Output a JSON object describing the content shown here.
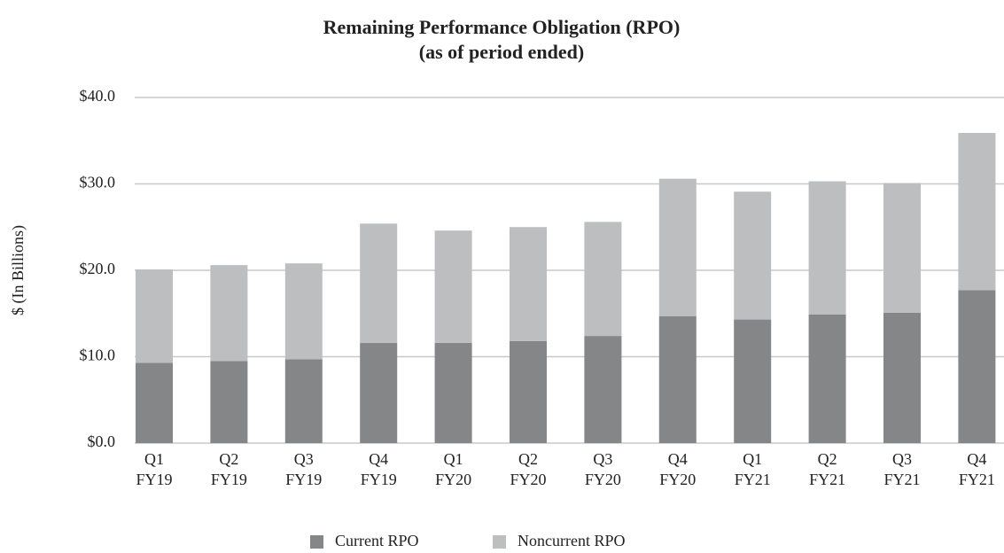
{
  "chart_data": {
    "type": "stacked_bar",
    "title": "Remaining Performance Obligation (RPO)",
    "subtitle": "(as of period ended)",
    "y_label": "$ (In Billions)",
    "categories": [
      [
        "Q1",
        "FY19"
      ],
      [
        "Q2",
        "FY19"
      ],
      [
        "Q3",
        "FY19"
      ],
      [
        "Q4",
        "FY19"
      ],
      [
        "Q1",
        "FY20"
      ],
      [
        "Q2",
        "FY20"
      ],
      [
        "Q3",
        "FY20"
      ],
      [
        "Q4",
        "FY20"
      ],
      [
        "Q1",
        "FY21"
      ],
      [
        "Q2",
        "FY21"
      ],
      [
        "Q3",
        "FY21"
      ],
      [
        "Q4",
        "FY21"
      ]
    ],
    "series": [
      {
        "name": "Current RPO",
        "color": "#858688",
        "values": [
          9.3,
          9.5,
          9.7,
          11.6,
          11.6,
          11.8,
          12.4,
          14.7,
          14.3,
          14.9,
          15.1,
          17.7
        ]
      },
      {
        "name": "Noncurrent RPO",
        "color": "#bdbec0",
        "values": [
          10.8,
          11.1,
          11.1,
          13.8,
          13.0,
          13.2,
          13.2,
          15.9,
          14.8,
          15.4,
          15.0,
          18.2
        ]
      }
    ],
    "ylim": [
      0,
      40
    ],
    "yticks": [
      {
        "value": 0,
        "label": "$0.0"
      },
      {
        "value": 10,
        "label": "$10.0"
      },
      {
        "value": 20,
        "label": "$20.0"
      },
      {
        "value": 30,
        "label": "$30.0"
      },
      {
        "value": 40,
        "label": "$40.0"
      }
    ],
    "grid": true,
    "legend": "bottom"
  }
}
